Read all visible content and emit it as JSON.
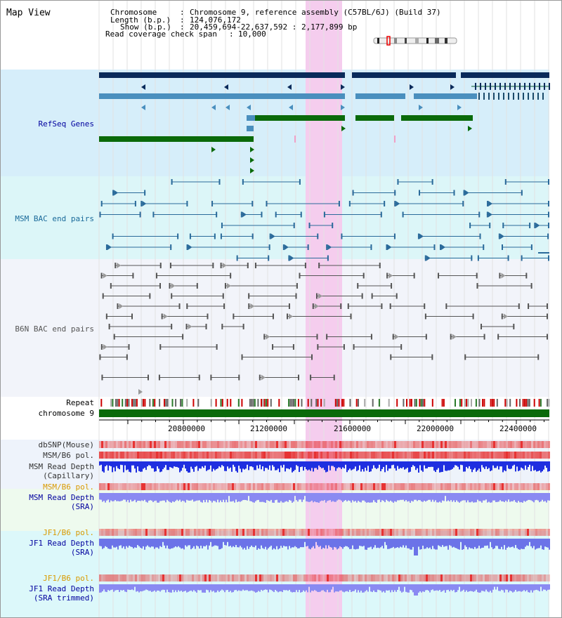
{
  "view": {
    "title": "Map View"
  },
  "header": {
    "chromosome_key": "Chromosome",
    "chromosome_value": "Chromosome 9, reference assembly (C57BL/6J) (Build 37)",
    "length_key": "Length (b.p.)",
    "length_value": "124,076,172",
    "show_key": "Show (b.p.)",
    "show_value": "20,459,694-22,637,592 : 2,177,899 bp",
    "coverage_key": "Read coverage check span",
    "coverage_value": "10,000"
  },
  "tracks": {
    "refseq": "RefSeq Genes",
    "msm_bac": "MSM BAC end pairs",
    "b6n_bac": "B6N BAC end pairs",
    "repeat": "Repeat",
    "chromosome": "chromosome 9",
    "dbsnp": "dbSNP(Mouse)",
    "msm_b6_pol_1": "MSM/B6 pol.",
    "msm_read_depth_cap_1": "MSM Read Depth",
    "msm_read_depth_cap_2": "(Capillary)",
    "msm_b6_pol_2": "MSM/B6 pol.",
    "msm_read_depth_sra_1": "MSM Read Depth",
    "msm_read_depth_sra_2": "(SRA)",
    "jf1_b6_pol_1": "JF1/B6 pol.",
    "jf1_read_depth_sra_1": "JF1 Read Depth",
    "jf1_read_depth_sra_2": "(SRA)",
    "jf1_b6_pol_2": "JF1/B6 pol.",
    "jf1_read_depth_trim_1": "JF1 Read Depth",
    "jf1_read_depth_trim_2": "(SRA trimmed)"
  },
  "axis": {
    "ticks": [
      "20800000",
      "21200000",
      "21600000",
      "22000000",
      "22400000"
    ]
  },
  "colors": {
    "refseq_bg": "#d6eefa",
    "msm_bg": "#dcf6f8",
    "b6n_bg": "#f2f4fa",
    "highlight": "#f5cdee",
    "navy": "#0a2a5a",
    "steel": "#4a8fbe",
    "green": "#0a6a0a",
    "msm_line": "#2a6a9a",
    "b6n_line": "#555555",
    "label_blue": "#00009e",
    "label_orange": "#d99a00",
    "label_msm": "#1a6a9a"
  }
}
